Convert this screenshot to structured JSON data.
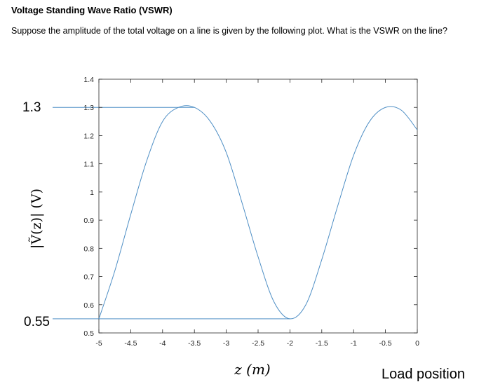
{
  "header": {
    "title": "Voltage Standing Wave Ratio (VSWR)",
    "question": "Suppose the amplitude of the total voltage on a line is given by the following plot.  What is the VSWR on the line?"
  },
  "annotations": {
    "max_label": "1.3",
    "min_label": "0.55",
    "load_label": "Load position"
  },
  "chart_data": {
    "type": "line",
    "xlabel": "z (m)",
    "ylabel": "|Ṽ(z)| (V)",
    "xlim": [
      -5,
      0
    ],
    "ylim": [
      0.5,
      1.4
    ],
    "xticks": [
      -5,
      -4.5,
      -4,
      -3.5,
      -3,
      -2.5,
      -2,
      -1.5,
      -1,
      -0.5,
      0
    ],
    "xtick_labels": [
      "-5",
      "-4.5",
      "-4",
      "-3.5",
      "-3",
      "-2.5",
      "-2",
      "-1.5",
      "-1",
      "-0.5",
      "0"
    ],
    "yticks": [
      0.5,
      0.6,
      0.7,
      0.8,
      0.9,
      1,
      1.1,
      1.2,
      1.3,
      1.4
    ],
    "ytick_labels": [
      "0.5",
      "0.6",
      "0.7",
      "0.8",
      "0.9",
      "1",
      "1.1",
      "1.2",
      "1.3",
      "1.4"
    ],
    "grid": false,
    "series": [
      {
        "color": "#4f8fc5",
        "x": [
          -5,
          -4.75,
          -4.5,
          -4.25,
          -4,
          -3.75,
          -3.5,
          -3.25,
          -3,
          -2.75,
          -2.5,
          -2.25,
          -2,
          -1.75,
          -1.5,
          -1.25,
          -1,
          -0.75,
          -0.5,
          -0.25,
          0
        ],
        "y": [
          0.55,
          0.72,
          0.92,
          1.11,
          1.25,
          1.3,
          1.3,
          1.25,
          1.14,
          0.96,
          0.77,
          0.61,
          0.55,
          0.6,
          0.76,
          0.95,
          1.13,
          1.25,
          1.3,
          1.29,
          1.22
        ]
      }
    ],
    "reference_lines": [
      {
        "value": 1.3,
        "color": "#4f8fc5"
      },
      {
        "value": 0.55,
        "color": "#4f8fc5"
      }
    ]
  }
}
